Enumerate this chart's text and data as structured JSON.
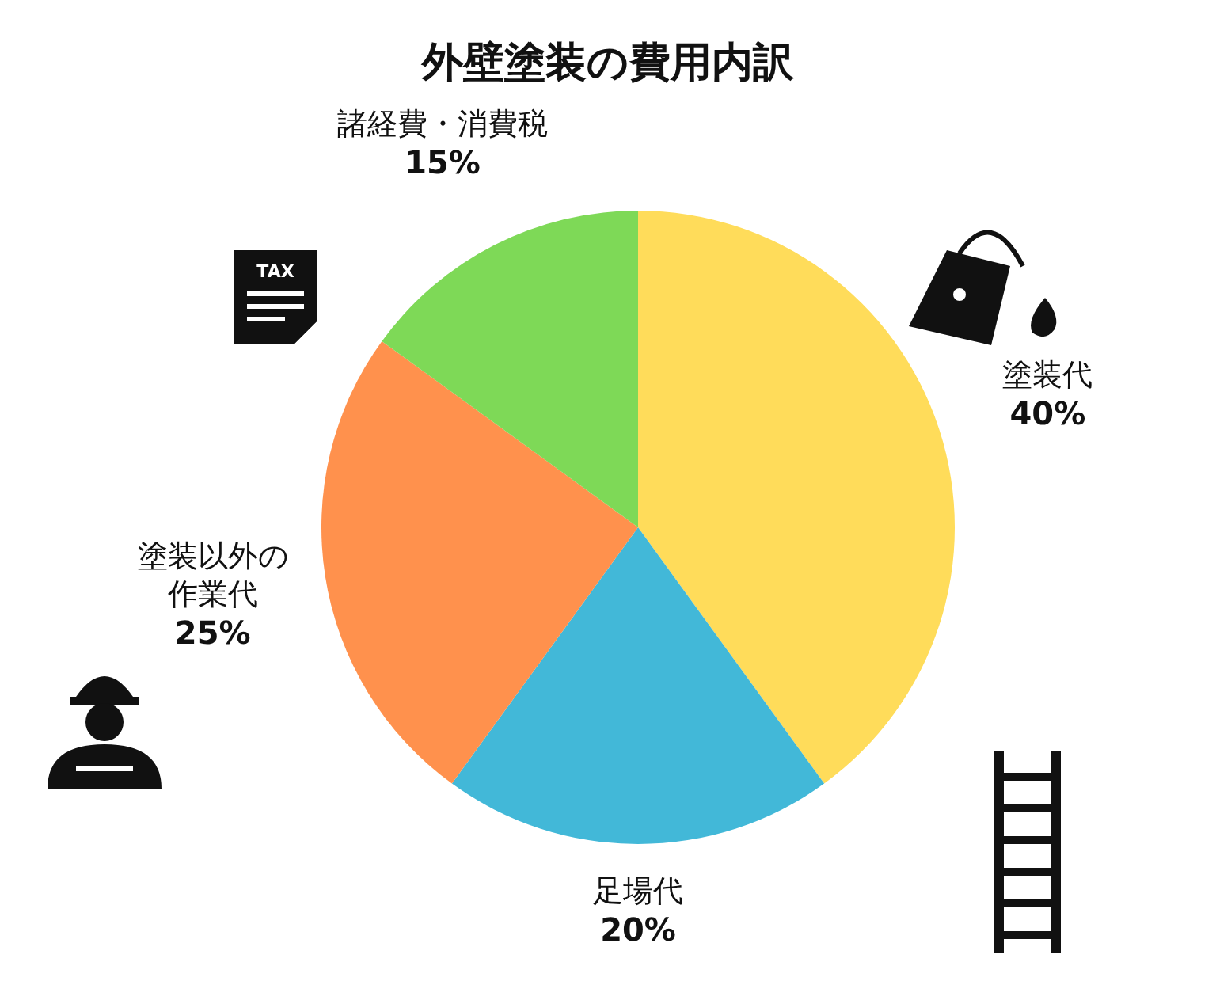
{
  "chart_data": {
    "type": "pie",
    "title": "外壁塗装の費用内訳",
    "categories": [
      "塗装代",
      "足場代",
      "塗装以外の作業代",
      "諸経費・消費税"
    ],
    "values": [
      40,
      20,
      25,
      15
    ],
    "value_labels": [
      "40%",
      "20%",
      "25%",
      "15%"
    ],
    "colors": [
      "#ffdc5a",
      "#42b8d8",
      "#ff914d",
      "#7ed957"
    ],
    "annotations": [
      "TAX"
    ],
    "legend": false
  }
}
